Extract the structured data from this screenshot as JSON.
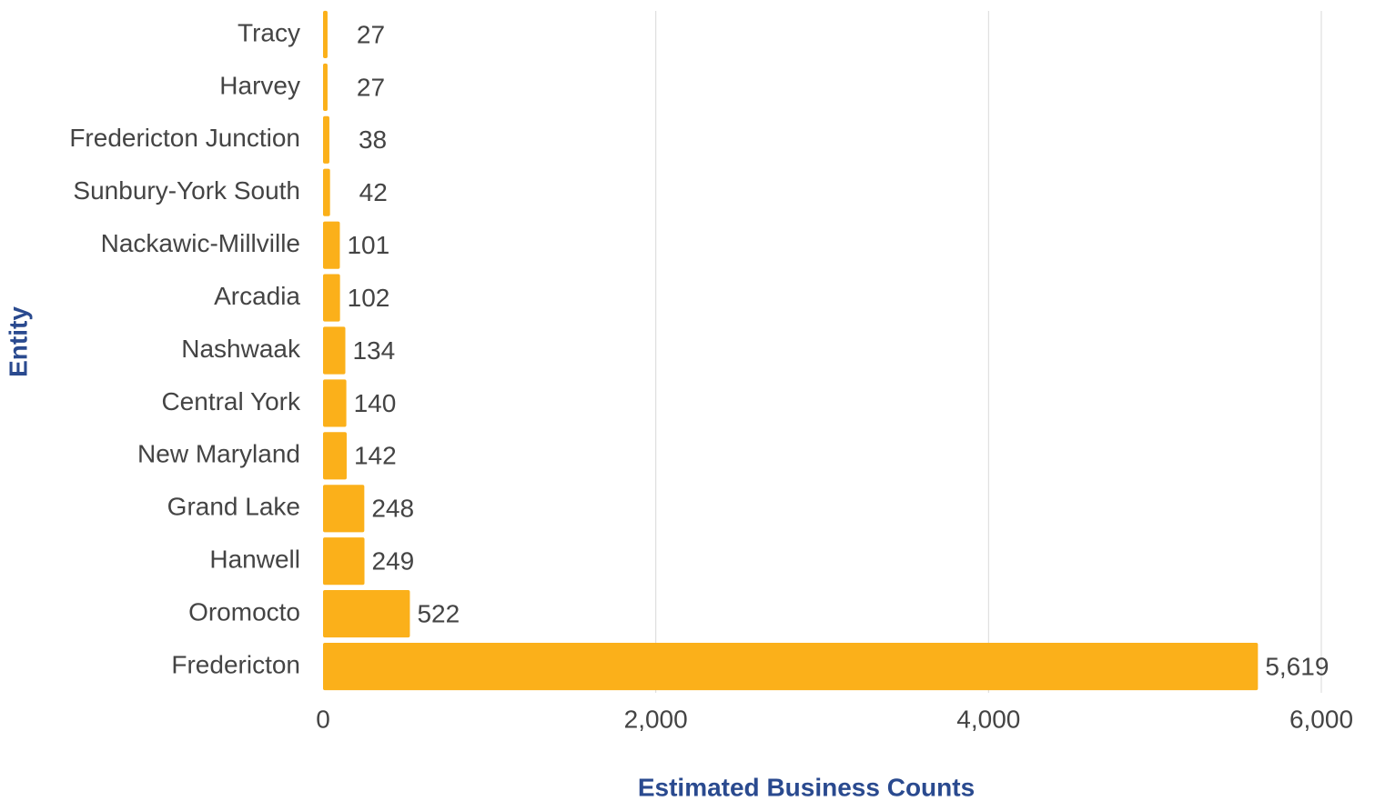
{
  "chart_data": {
    "type": "bar",
    "orientation": "horizontal",
    "xlabel": "Estimated Business Counts",
    "ylabel": "Entity",
    "categories": [
      "Tracy",
      "Harvey",
      "Fredericton Junction",
      "Sunbury-York South",
      "Nackawic-Millville",
      "Arcadia",
      "Nashwaak",
      "Central York",
      "New Maryland",
      "Grand Lake",
      "Hanwell",
      "Oromocto",
      "Fredericton"
    ],
    "values": [
      27,
      27,
      38,
      42,
      101,
      102,
      134,
      140,
      142,
      248,
      249,
      522,
      5619
    ],
    "value_labels": [
      "27",
      "27",
      "38",
      "42",
      "101",
      "102",
      "134",
      "140",
      "142",
      "248",
      "249",
      "522",
      "5,619"
    ],
    "color": "#fbb01a",
    "xlim": [
      0,
      6000
    ],
    "xticks": [
      0,
      {
        "value": 2000,
        "label": "2,000"
      },
      {
        "value": 4000,
        "label": "4,000"
      },
      {
        "value": 6000,
        "label": "6,000"
      }
    ],
    "grid": true
  }
}
